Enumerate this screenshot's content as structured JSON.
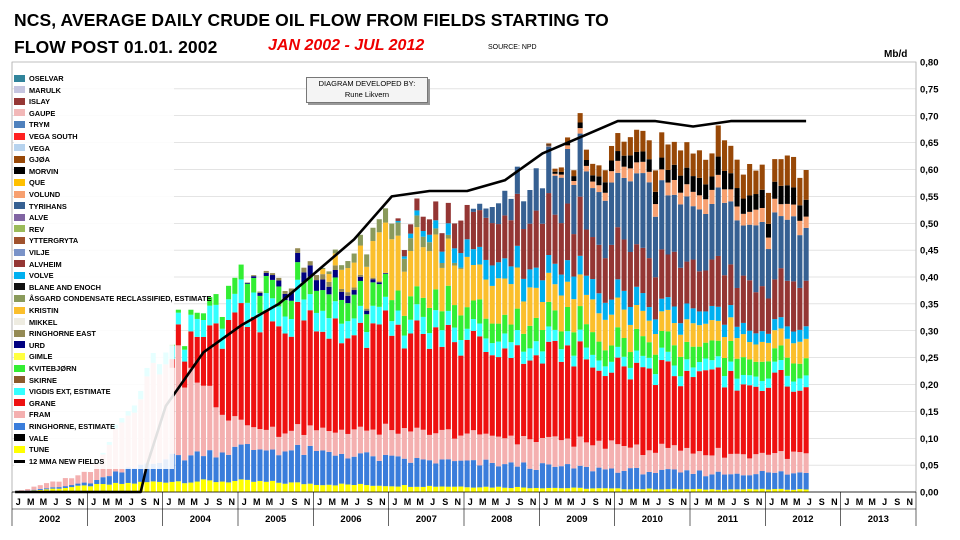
{
  "title_line1": "NCS, AVERAGE DAILY CRUDE OIL FLOW FROM FIELDS STARTING TO",
  "title_line2": "FLOW POST 01.01. 2002",
  "period": "JAN 2002 - JUL 2012",
  "source": "SOURCE: NPD",
  "developer": {
    "line1": "DIAGRAM DEVELOPED BY:",
    "line2": "Rune Likvern"
  },
  "chart_data": {
    "type": "bar",
    "stacked": true,
    "title": "NCS, AVERAGE DAILY CRUDE OIL FLOW FROM FIELDS STARTING TO FLOW POST 01.01. 2002",
    "ylabel": "Mb/d",
    "ylim": [
      0,
      0.8
    ],
    "y_ticks": [
      "0,00",
      "0,05",
      "0,10",
      "0,15",
      "0,20",
      "0,25",
      "0,30",
      "0,35",
      "0,40",
      "0,45",
      "0,50",
      "0,55",
      "0,60",
      "0,65",
      "0,70",
      "0,75",
      "0,80"
    ],
    "y_axis_position": "right",
    "grid": true,
    "legend_position": "top-left",
    "x_range": [
      "2002-01",
      "2013-12"
    ],
    "data_range": [
      "2002-01",
      "2012-07"
    ],
    "month_labels": [
      "J",
      "M",
      "M",
      "J",
      "S",
      "N"
    ],
    "years": [
      "2002",
      "2003",
      "2004",
      "2005",
      "2006",
      "2007",
      "2008",
      "2009",
      "2010",
      "2011",
      "2012",
      "2013"
    ],
    "series_order_top_to_bottom": [
      {
        "name": "OSELVAR",
        "color": "#31849b"
      },
      {
        "name": "MARULK",
        "color": "#c5c5e0"
      },
      {
        "name": "ISLAY",
        "color": "#953735"
      },
      {
        "name": "GAUPE",
        "color": "#f2b8b8"
      },
      {
        "name": "TRYM",
        "color": "#4f81bd"
      },
      {
        "name": "VEGA SOUTH",
        "color": "#ff2020"
      },
      {
        "name": "VEGA",
        "color": "#b7d3ee"
      },
      {
        "name": "GJØA",
        "color": "#984807"
      },
      {
        "name": "MORVIN",
        "color": "#000000"
      },
      {
        "name": "QUE",
        "color": "#ffc000"
      },
      {
        "name": "VOLUND",
        "color": "#f7a070"
      },
      {
        "name": "TYRIHANS",
        "color": "#366092"
      },
      {
        "name": "ALVE",
        "color": "#8064a2"
      },
      {
        "name": "REV",
        "color": "#9bbb59"
      },
      {
        "name": "YTTERGRYTA",
        "color": "#a0522d"
      },
      {
        "name": "VILJE",
        "color": "#7a93c8"
      },
      {
        "name": "ALVHEIM",
        "color": "#943634"
      },
      {
        "name": "VOLVE",
        "color": "#00b0f0"
      },
      {
        "name": "BLANE AND ENOCH",
        "color": "#111111"
      },
      {
        "name": "ÅSGARD CONDENSATE RECLASSIFIED, ESTIMATE",
        "color": "#8a9a5b"
      },
      {
        "name": "KRISTIN",
        "color": "#fbbf2c"
      },
      {
        "name": "MIKKEL",
        "color": "#eeece1"
      },
      {
        "name": "RINGHORNE EAST",
        "color": "#948a54"
      },
      {
        "name": "URD",
        "color": "#000080"
      },
      {
        "name": "GIMLE",
        "color": "#ffff40"
      },
      {
        "name": "KVITEBJØRN",
        "color": "#33ee33"
      },
      {
        "name": "SKIRNE",
        "color": "#8b5a2b"
      },
      {
        "name": "VIGDIS EXT, ESTIMATE",
        "color": "#33ffff"
      },
      {
        "name": "GRANE",
        "color": "#ee1111"
      },
      {
        "name": "FRAM",
        "color": "#f4b0b0"
      },
      {
        "name": "RINGHORNE, ESTIMATE",
        "color": "#3a7ddb"
      },
      {
        "name": "VALE",
        "color": "#000000"
      },
      {
        "name": "TUNE",
        "color": "#ffff00"
      }
    ],
    "line_series": {
      "name": "12 MMA NEW FIELDS",
      "color": "#000000"
    },
    "stacks_annual_approx": {
      "2002": {
        "TUNE": 0.0
      },
      "2003": {
        "TUNE": 0.012,
        "RINGHORNE, ESTIMATE": 0.005,
        "FRAM": 0.02
      },
      "2004": {
        "TUNE": 0.02,
        "RINGHORNE, ESTIMATE": 0.045,
        "FRAM": 0.2,
        "VIGDIS EXT, ESTIMATE": 0.02
      },
      "2005": {
        "TUNE": 0.02,
        "RINGHORNE, ESTIMATE": 0.06,
        "FRAM": 0.04,
        "GRANE": 0.2,
        "VIGDIS EXT, ESTIMATE": 0.04,
        "KVITEBJØRN": 0.03
      },
      "2006": {
        "TUNE": 0.015,
        "RINGHORNE, ESTIMATE": 0.06,
        "FRAM": 0.04,
        "GRANE": 0.2,
        "VIGDIS EXT, ESTIMATE": 0.035,
        "KVITEBJØRN": 0.04,
        "URD": 0.02,
        "RINGHORNE EAST": 0.01
      },
      "2007": {
        "TUNE": 0.012,
        "RINGHORNE, ESTIMATE": 0.05,
        "FRAM": 0.05,
        "GRANE": 0.18,
        "VIGDIS EXT, ESTIMATE": 0.03,
        "KVITEBJØRN": 0.04,
        "KRISTIN": 0.1,
        "ÅSGARD CONDENSATE RECLASSIFIED, ESTIMATE": 0.03
      },
      "2008": {
        "TUNE": 0.01,
        "RINGHORNE, ESTIMATE": 0.045,
        "FRAM": 0.05,
        "GRANE": 0.17,
        "VIGDIS EXT, ESTIMATE": 0.025,
        "KVITEBJØRN": 0.04,
        "KRISTIN": 0.08,
        "VOLVE": 0.03,
        "ALVHEIM": 0.06
      },
      "2009": {
        "TUNE": 0.008,
        "RINGHORNE, ESTIMATE": 0.04,
        "FRAM": 0.05,
        "GRANE": 0.16,
        "VIGDIS EXT, ESTIMATE": 0.025,
        "KVITEBJØRN": 0.04,
        "KRISTIN": 0.06,
        "VOLVE": 0.04,
        "ALVHEIM": 0.1,
        "TYRIHANS": 0.08
      },
      "2010": {
        "TUNE": 0.006,
        "RINGHORNE, ESTIMATE": 0.035,
        "FRAM": 0.045,
        "GRANE": 0.15,
        "VIGDIS EXT, ESTIMATE": 0.02,
        "KVITEBJØRN": 0.035,
        "KRISTIN": 0.05,
        "VOLVE": 0.03,
        "ALVHEIM": 0.09,
        "TYRIHANS": 0.12,
        "VOLUND": 0.02,
        "MORVIN": 0.02,
        "GJØA": 0.03
      },
      "2011": {
        "TUNE": 0.005,
        "RINGHORNE, ESTIMATE": 0.03,
        "FRAM": 0.04,
        "GRANE": 0.14,
        "VIGDIS EXT, ESTIMATE": 0.02,
        "KVITEBJØRN": 0.035,
        "KRISTIN": 0.04,
        "VOLVE": 0.025,
        "ALVHEIM": 0.09,
        "TYRIHANS": 0.12,
        "VOLUND": 0.025,
        "MORVIN": 0.03,
        "GJØA": 0.05
      },
      "2012": {
        "TUNE": 0.005,
        "RINGHORNE, ESTIMATE": 0.03,
        "FRAM": 0.035,
        "GRANE": 0.13,
        "VIGDIS EXT, ESTIMATE": 0.02,
        "KVITEBJØRN": 0.03,
        "KRISTIN": 0.035,
        "VOLVE": 0.02,
        "ALVHEIM": 0.08,
        "TYRIHANS": 0.11,
        "VOLUND": 0.025,
        "MORVIN": 0.03,
        "GJØA": 0.05
      }
    },
    "mma_12_points": [
      [
        "2002-01",
        0.0
      ],
      [
        "2003-09",
        0.0
      ],
      [
        "2003-10",
        0.05
      ],
      [
        "2004-01",
        0.16
      ],
      [
        "2004-07",
        0.26
      ],
      [
        "2005-01",
        0.31
      ],
      [
        "2005-07",
        0.35
      ],
      [
        "2006-01",
        0.41
      ],
      [
        "2006-07",
        0.47
      ],
      [
        "2007-01",
        0.55
      ],
      [
        "2007-07",
        0.56
      ],
      [
        "2008-01",
        0.56
      ],
      [
        "2008-07",
        0.58
      ],
      [
        "2009-01",
        0.63
      ],
      [
        "2009-07",
        0.66
      ],
      [
        "2010-01",
        0.69
      ],
      [
        "2010-07",
        0.69
      ],
      [
        "2011-01",
        0.68
      ],
      [
        "2011-07",
        0.69
      ],
      [
        "2012-01",
        0.69
      ],
      [
        "2012-07",
        0.69
      ]
    ]
  }
}
